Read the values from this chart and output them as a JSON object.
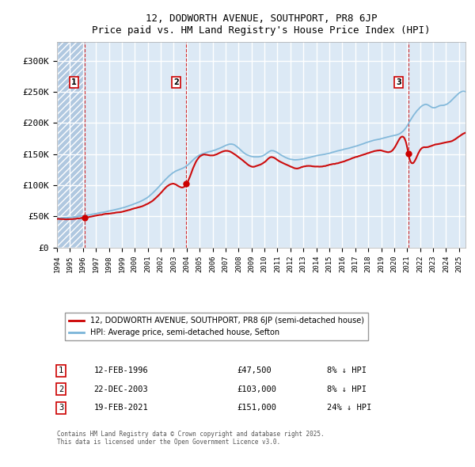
{
  "title": "12, DODWORTH AVENUE, SOUTHPORT, PR8 6JP",
  "subtitle": "Price paid vs. HM Land Registry's House Price Index (HPI)",
  "property_label": "12, DODWORTH AVENUE, SOUTHPORT, PR8 6JP (semi-detached house)",
  "hpi_label": "HPI: Average price, semi-detached house, Sefton",
  "footer": "Contains HM Land Registry data © Crown copyright and database right 2025.\nThis data is licensed under the Open Government Licence v3.0.",
  "transactions": [
    {
      "num": 1,
      "date": "12-FEB-1996",
      "date_dec": 1996.12,
      "price": 47500,
      "pct": "8%",
      "dir": "↓"
    },
    {
      "num": 2,
      "date": "22-DEC-2003",
      "date_dec": 2003.97,
      "price": 103000,
      "pct": "8%",
      "dir": "↓"
    },
    {
      "num": 3,
      "date": "19-FEB-2021",
      "date_dec": 2021.13,
      "price": 151000,
      "pct": "24%",
      "dir": "↓"
    }
  ],
  "xlim_start": 1994.0,
  "xlim_end": 2025.5,
  "ylim_min": 0,
  "ylim_max": 330000,
  "hatch_end": 1996.12,
  "red_color": "#cc0000",
  "blue_color": "#7ab4d8",
  "bg_color": "#dce9f5",
  "hatch_color": "#b0c8e0",
  "grid_color": "#ffffff",
  "vline_color": "#cc0000",
  "yticks": [
    0,
    50000,
    100000,
    150000,
    200000,
    250000,
    300000
  ],
  "ytick_labels": [
    "£0",
    "£50K",
    "£100K",
    "£150K",
    "£200K",
    "£250K",
    "£300K"
  ]
}
